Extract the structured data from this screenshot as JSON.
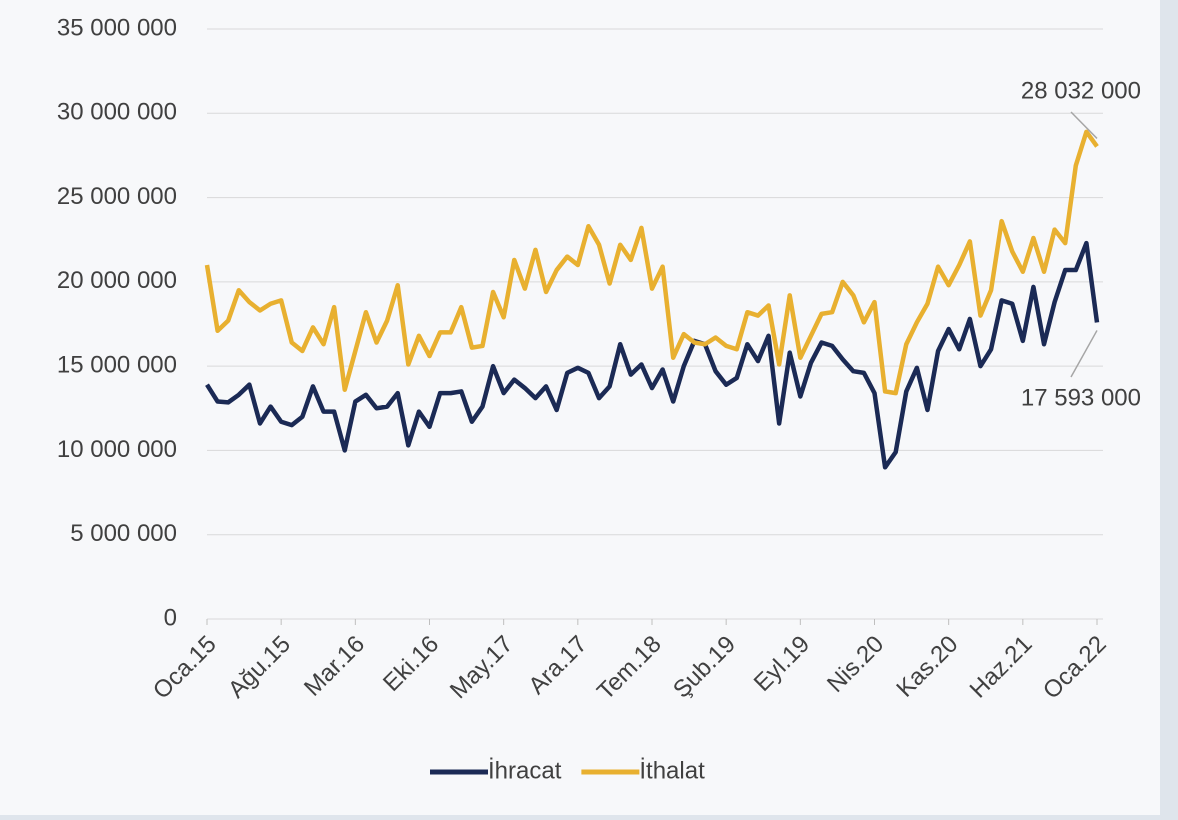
{
  "chart_data": {
    "type": "line",
    "categories": [
      "Oca.15",
      null,
      null,
      null,
      null,
      null,
      null,
      "Ağu.15",
      null,
      null,
      null,
      null,
      null,
      null,
      "Mar.16",
      null,
      null,
      null,
      null,
      null,
      null,
      "Eki.16",
      null,
      null,
      null,
      null,
      null,
      null,
      "May.17",
      null,
      null,
      null,
      null,
      null,
      null,
      "Ara.17",
      null,
      null,
      null,
      null,
      null,
      null,
      "Tem.18",
      null,
      null,
      null,
      null,
      null,
      null,
      "Şub.19",
      null,
      null,
      null,
      null,
      null,
      null,
      "Eyl.19",
      null,
      null,
      null,
      null,
      null,
      null,
      "Nis.20",
      null,
      null,
      null,
      null,
      null,
      null,
      "Kas.20",
      null,
      null,
      null,
      null,
      null,
      null,
      "Haz.21",
      null,
      null,
      null,
      null,
      null,
      null,
      "Oca.22"
    ],
    "series": [
      {
        "name": "İhracat",
        "color": "#1b2a55",
        "values": [
          13900000,
          12900000,
          12850000,
          13300000,
          13900000,
          11600000,
          12600000,
          11700000,
          11500000,
          12000000,
          13800000,
          12300000,
          12300000,
          10000000,
          12900000,
          13300000,
          12500000,
          12600000,
          13400000,
          10300000,
          12300000,
          11400000,
          13400000,
          13400000,
          13500000,
          11700000,
          12600000,
          15000000,
          13400000,
          14200000,
          13700000,
          13100000,
          13800000,
          12400000,
          14600000,
          14900000,
          14600000,
          13100000,
          13800000,
          16300000,
          14500000,
          15100000,
          13700000,
          14800000,
          12900000,
          15000000,
          16500000,
          16300000,
          14700000,
          13900000,
          14300000,
          16300000,
          15300000,
          16800000,
          11600000,
          15800000,
          13200000,
          15200000,
          16400000,
          16200000,
          15400000,
          14700000,
          14600000,
          13400000,
          9000000,
          9900000,
          13500000,
          14900000,
          12400000,
          15900000,
          17200000,
          16000000,
          17800000,
          15000000,
          16000000,
          18900000,
          18700000,
          16500000,
          19700000,
          16300000,
          18800000,
          20700000,
          20700000,
          22300000,
          17593000
        ],
        "value_labels": [
          null,
          null,
          null,
          null,
          null,
          null,
          null,
          null,
          null,
          null,
          null,
          null,
          null,
          null,
          null,
          null,
          null,
          null,
          null,
          null,
          null,
          null,
          null,
          null,
          null,
          null,
          null,
          null,
          null,
          null,
          null,
          null,
          null,
          null,
          null,
          null,
          null,
          null,
          null,
          null,
          null,
          null,
          null,
          null,
          null,
          null,
          null,
          null,
          null,
          null,
          null,
          null,
          null,
          null,
          null,
          null,
          null,
          null,
          null,
          null,
          null,
          null,
          null,
          null,
          null,
          null,
          null,
          null,
          null,
          null,
          null,
          null,
          null,
          null,
          null,
          null,
          null,
          null,
          null,
          null,
          null,
          null,
          null,
          null,
          "17 593 000"
        ]
      },
      {
        "name": "İthalat",
        "color": "#e8b030",
        "values": [
          21000000,
          17100000,
          17700000,
          19500000,
          18800000,
          18300000,
          18700000,
          18900000,
          16400000,
          15900000,
          17300000,
          16300000,
          18500000,
          13600000,
          15900000,
          18200000,
          16400000,
          17700000,
          19800000,
          15100000,
          16800000,
          15600000,
          17000000,
          17000000,
          18500000,
          16100000,
          16200000,
          19400000,
          17900000,
          21300000,
          19600000,
          21900000,
          19400000,
          20700000,
          21500000,
          21000000,
          23300000,
          22200000,
          19900000,
          22200000,
          21300000,
          23200000,
          19600000,
          20900000,
          15500000,
          16900000,
          16400000,
          16300000,
          16700000,
          16200000,
          16000000,
          18200000,
          18000000,
          18600000,
          15100000,
          19200000,
          15500000,
          16800000,
          18100000,
          18200000,
          20000000,
          19200000,
          17600000,
          18800000,
          13500000,
          13400000,
          16300000,
          17600000,
          18700000,
          20900000,
          19800000,
          21000000,
          22400000,
          18000000,
          19500000,
          23600000,
          21800000,
          20600000,
          22600000,
          20600000,
          23100000,
          22300000,
          26900000,
          28900000,
          28032000
        ],
        "value_labels": [
          null,
          null,
          null,
          null,
          null,
          null,
          null,
          null,
          null,
          null,
          null,
          null,
          null,
          null,
          null,
          null,
          null,
          null,
          null,
          null,
          null,
          null,
          null,
          null,
          null,
          null,
          null,
          null,
          null,
          null,
          null,
          null,
          null,
          null,
          null,
          null,
          null,
          null,
          null,
          null,
          null,
          null,
          null,
          null,
          null,
          null,
          null,
          null,
          null,
          null,
          null,
          null,
          null,
          null,
          null,
          null,
          null,
          null,
          null,
          null,
          null,
          null,
          null,
          null,
          null,
          null,
          null,
          null,
          null,
          null,
          null,
          null,
          null,
          null,
          null,
          null,
          null,
          null,
          null,
          null,
          null,
          null,
          null,
          null,
          "28 032 000"
        ]
      }
    ],
    "ylim": [
      0,
      35000000
    ],
    "yticks": [
      0,
      {
        "value": 5000000,
        "label": "5 000 000"
      },
      {
        "value": 10000000,
        "label": "10 000 000"
      },
      {
        "value": 15000000,
        "label": "15 000 000"
      },
      {
        "value": 20000000,
        "label": "20 000 000"
      },
      {
        "value": 25000000,
        "label": "25 000 000"
      },
      {
        "value": 30000000,
        "label": "30 000 000"
      },
      {
        "value": 35000000,
        "label": "35 000 000"
      }
    ],
    "grid": true,
    "legend": "bottom"
  }
}
